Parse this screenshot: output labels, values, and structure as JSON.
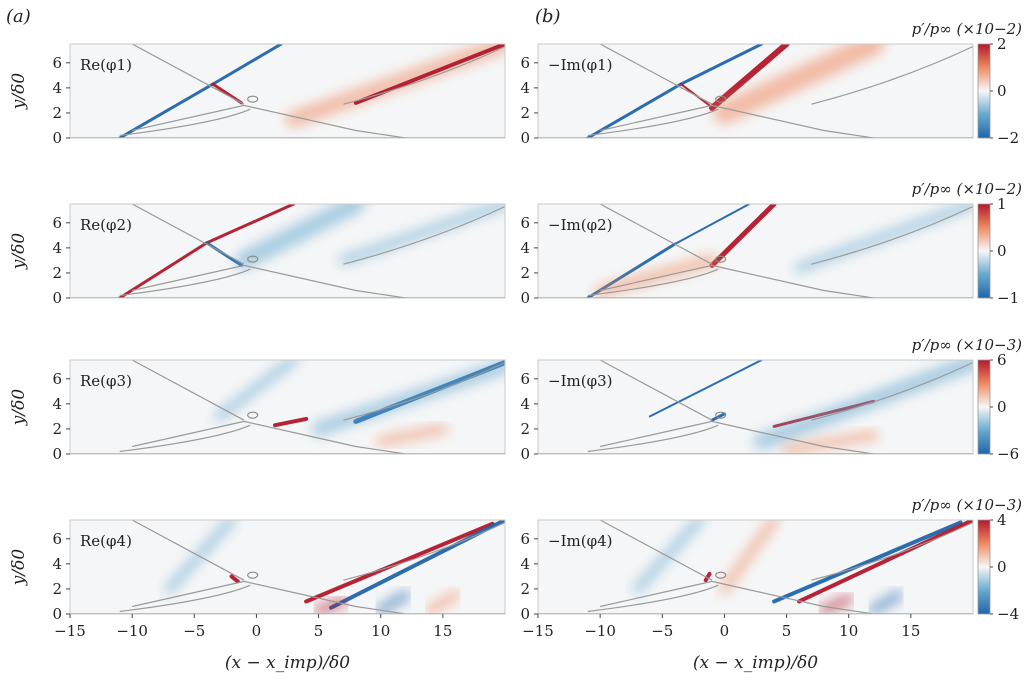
{
  "panel_labels": [
    "(a)",
    "(b)"
  ],
  "chart_data": {
    "type": "heatmap",
    "xlabel": "(x − x_imp)/δ0",
    "ylabel": "y/δ0",
    "xlim": [
      -15,
      20
    ],
    "ylim": [
      0,
      7.5
    ],
    "xticks": [
      -15,
      -10,
      -5,
      0,
      5,
      10,
      15
    ],
    "yticks": [
      0,
      2,
      4,
      6
    ],
    "columns": [
      "(a)",
      "(b)"
    ],
    "panels": [
      {
        "column": "(a)",
        "row": 1,
        "label": "Re(φ1)"
      },
      {
        "column": "(b)",
        "row": 1,
        "label": "−Im(φ1)"
      },
      {
        "column": "(a)",
        "row": 2,
        "label": "Re(φ2)"
      },
      {
        "column": "(b)",
        "row": 2,
        "label": "−Im(φ2)"
      },
      {
        "column": "(a)",
        "row": 3,
        "label": "Re(φ3)"
      },
      {
        "column": "(b)",
        "row": 3,
        "label": "−Im(φ3)"
      },
      {
        "column": "(a)",
        "row": 4,
        "label": "Re(φ4)"
      },
      {
        "column": "(b)",
        "row": 4,
        "label": "−Im(φ4)"
      }
    ],
    "colorbars": [
      {
        "row": 1,
        "label": "p′/p∞ (×10−2)",
        "ticks": [
          2,
          0,
          -2
        ],
        "range": [
          -2,
          2
        ]
      },
      {
        "row": 2,
        "label": "p′/p∞ (×10−2)",
        "ticks": [
          1,
          0,
          -1
        ],
        "range": [
          -1,
          1
        ]
      },
      {
        "row": 3,
        "label": "p′/p∞ (×10−3)",
        "ticks": [
          6,
          0,
          -6
        ],
        "range": [
          -6,
          6
        ]
      },
      {
        "row": 4,
        "label": "p′/p∞ (×10−3)",
        "ticks": [
          4,
          0,
          -4
        ],
        "range": [
          -4,
          4
        ]
      }
    ],
    "colormap": {
      "negative": "#2166ac",
      "zero": "#f7f7f7",
      "positive": "#b2182b"
    },
    "grid": false
  }
}
